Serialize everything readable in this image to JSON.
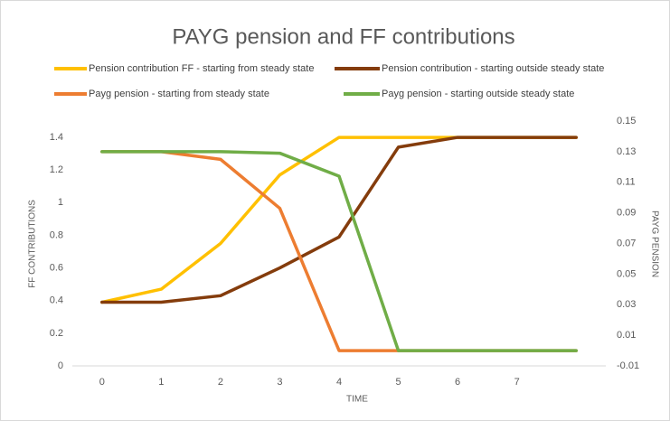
{
  "chart_data": {
    "type": "line",
    "title": "PAYG pension and FF contributions",
    "x_label": "TIME",
    "y_label": "FF CONTRIBUTIONS",
    "y2_label": "PAYG PENSION",
    "categories": [
      "0",
      "1",
      "2",
      "3",
      "4",
      "5",
      "6",
      "7",
      null
    ],
    "ylim": [
      0,
      1.5
    ],
    "yticks": [
      0,
      0.2,
      0.4,
      0.6,
      0.8,
      1,
      1.2,
      1.4
    ],
    "y2lim": [
      -0.01,
      0.15
    ],
    "y2ticks": [
      -0.01,
      0.01,
      0.03,
      0.05,
      0.07,
      0.09,
      0.11,
      0.13,
      0.15
    ],
    "grid": false,
    "series": [
      {
        "name": "Pension contribution FF - starting from steady state",
        "color": "#ffc000",
        "values": [
          0.39,
          0.47,
          0.75,
          1.17,
          1.4,
          1.4,
          1.4,
          1.4,
          1.4
        ]
      },
      {
        "name": "Pension contribution - starting outside steady state",
        "color": "#843c0c",
        "values": [
          0.39,
          0.39,
          0.43,
          0.6,
          0.79,
          1.34,
          1.4,
          1.4,
          1.4
        ]
      },
      {
        "name": "Payg pension - starting from steady state",
        "color": "#ed7d31",
        "axis": "y2",
        "values": [
          0.13,
          0.13,
          0.125,
          0.093,
          0,
          0,
          0,
          0,
          0
        ]
      },
      {
        "name": "Payg pension - starting outside steady state",
        "color": "#70ad47",
        "axis": "y2",
        "values": [
          0.13,
          0.13,
          0.13,
          0.129,
          0.114,
          0,
          0,
          0,
          0
        ]
      }
    ]
  }
}
